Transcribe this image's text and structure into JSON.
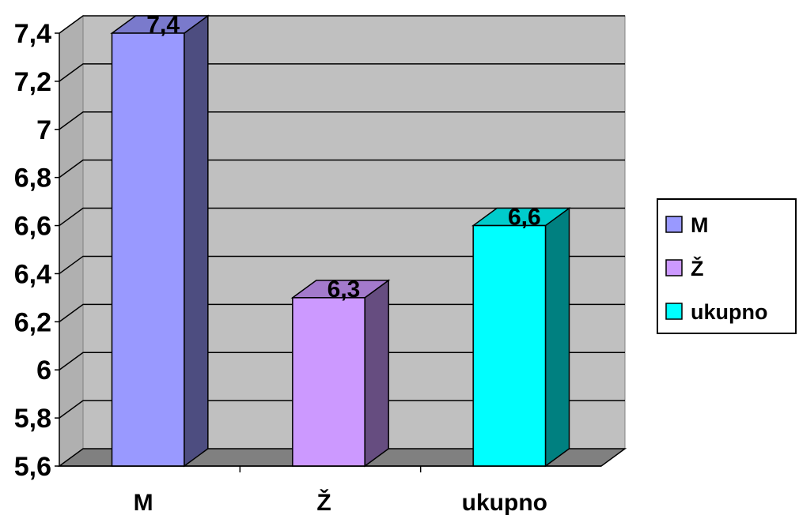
{
  "chart_data": {
    "type": "bar",
    "title": "",
    "xlabel": "",
    "ylabel": "",
    "categories": [
      "M",
      "Ž",
      "ukupno"
    ],
    "values": [
      7.4,
      6.3,
      6.6
    ],
    "ylim": [
      5.6,
      7.4
    ],
    "y_ticks": [
      5.6,
      5.8,
      6,
      6.2,
      6.4,
      6.6,
      6.8,
      7,
      7.2,
      7.4
    ],
    "y_tick_labels": [
      "5,6",
      "5,8",
      "6",
      "6,2",
      "6,4",
      "6,6",
      "6,8",
      "7",
      "7,2",
      "7,4"
    ],
    "data_labels": [
      "7,4",
      "6,3",
      "6,6"
    ],
    "grid": true,
    "three_d": true,
    "legend": {
      "position": "right",
      "entries": [
        "M",
        "Ž",
        "ukupno"
      ]
    },
    "colors": [
      {
        "front": "#9999ff",
        "side": "#4d4d80",
        "top": "#7a7acc"
      },
      {
        "front": "#cc99ff",
        "side": "#664d80",
        "top": "#a37acc"
      },
      {
        "front": "#00ffff",
        "side": "#008080",
        "top": "#00cccc"
      }
    ],
    "wall_color": "#c0c0c0",
    "floor_color": "#808080"
  }
}
